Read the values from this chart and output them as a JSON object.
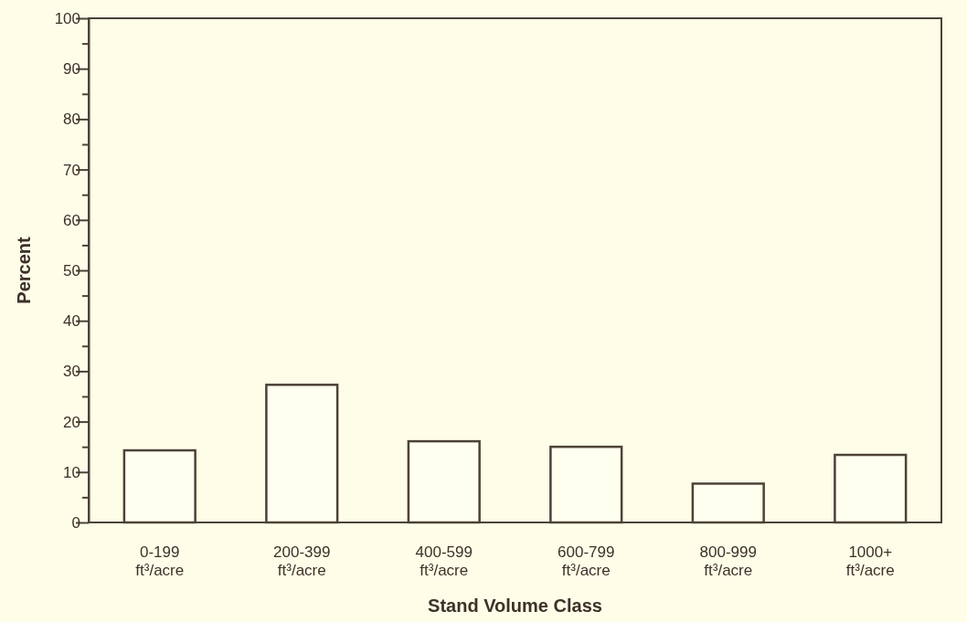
{
  "chart_data": {
    "type": "bar",
    "xlabel": "Stand Volume Class",
    "ylabel": "Percent",
    "categories": [
      "0-199 ft³/acre",
      "200-399 ft³/acre",
      "400-599 ft³/acre",
      "600-799 ft³/acre",
      "800-999 ft³/acre",
      "1000+ ft³/acre"
    ],
    "values": [
      14.3,
      27.3,
      16.1,
      15.0,
      7.7,
      13.4
    ],
    "color": "#fffff0",
    "ylim": [
      0,
      100
    ],
    "yticks": [
      0,
      {
        "value": 5,
        "label": null
      },
      10,
      {
        "value": 15,
        "label": null
      },
      20,
      {
        "value": 25,
        "label": null
      },
      30,
      {
        "value": 35,
        "label": null
      },
      40,
      {
        "value": 45,
        "label": null
      },
      50,
      {
        "value": 55,
        "label": null
      },
      60,
      {
        "value": 65,
        "label": null
      },
      70,
      {
        "value": 75,
        "label": null
      },
      80,
      {
        "value": 85,
        "label": null
      },
      90,
      {
        "value": 95,
        "label": null
      },
      100
    ],
    "grid": false
  }
}
